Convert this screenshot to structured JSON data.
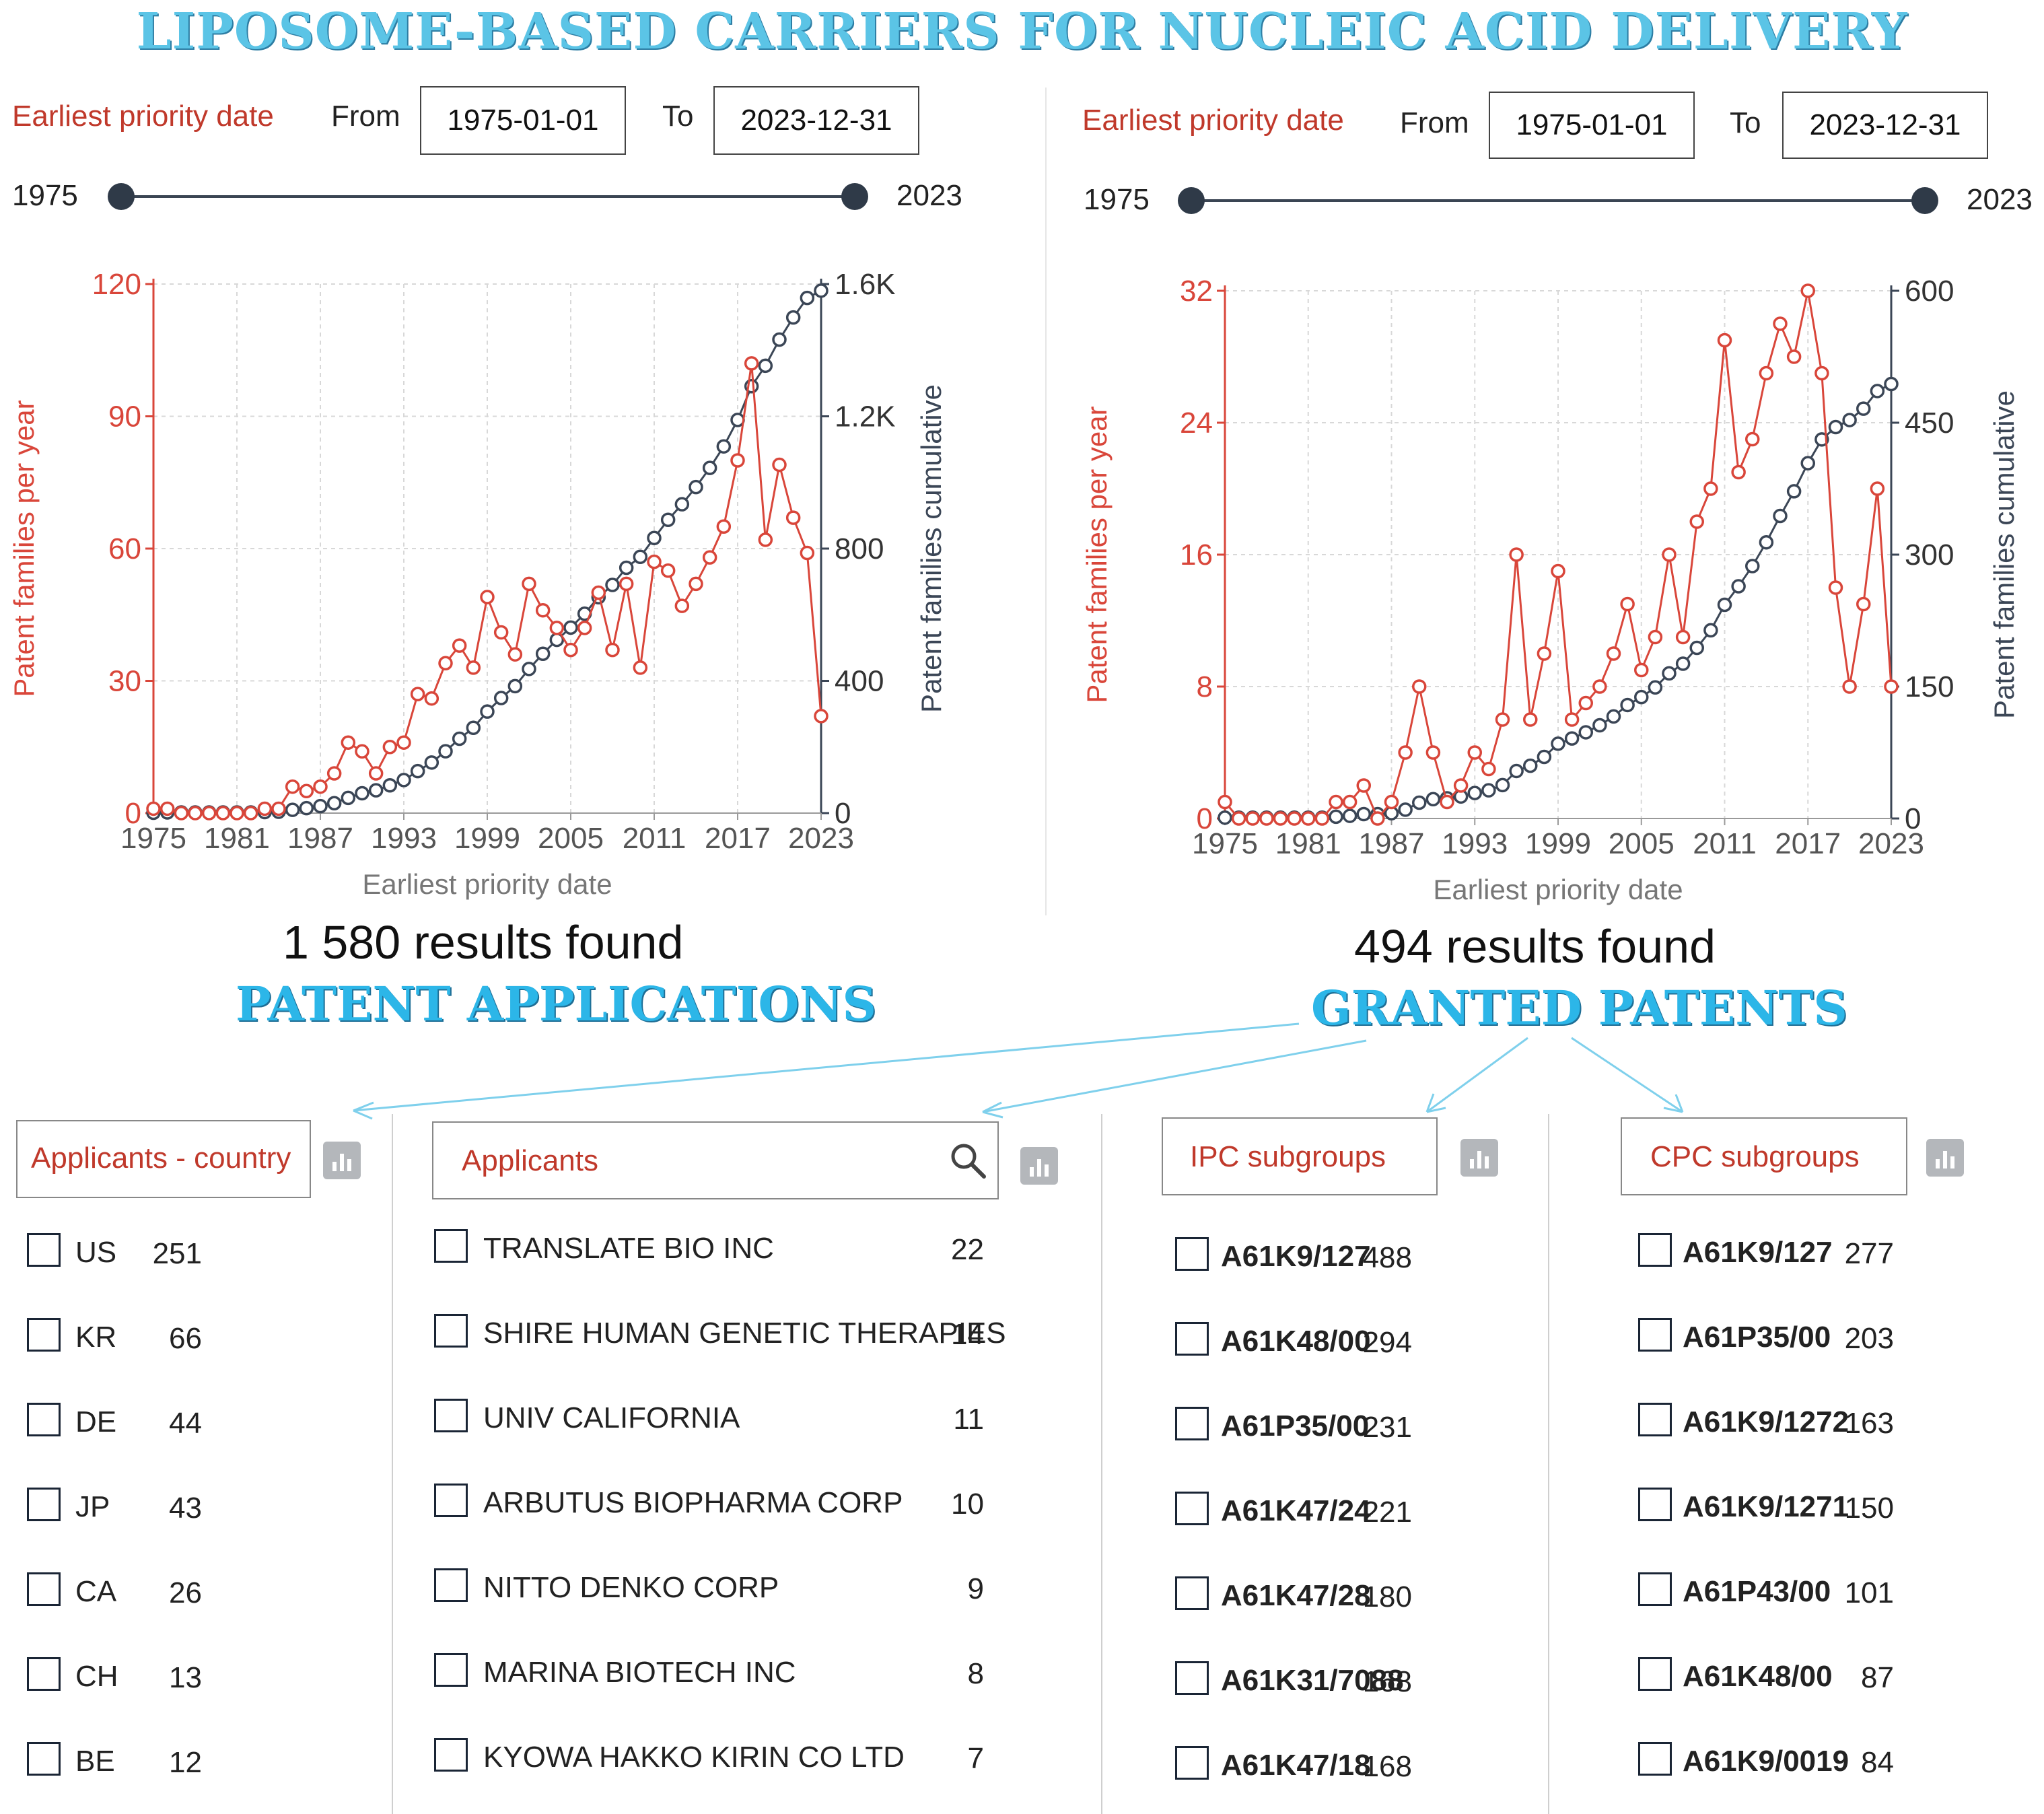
{
  "title": "LIPOSOME-BASED CARRIERS FOR NUCLEIC ACID DELIVERY",
  "panels": [
    {
      "filter_label": "Earliest priority date",
      "from_label": "From",
      "from_value": "1975-01-01",
      "to_label": "To",
      "to_value": "2023-12-31",
      "slider_min": "1975",
      "slider_max": "2023",
      "results": "1 580 results found",
      "section_title": "PATENT APPLICATIONS"
    },
    {
      "filter_label": "Earliest priority date",
      "from_label": "From",
      "from_value": "1975-01-01",
      "to_label": "To",
      "to_value": "2023-12-31",
      "slider_min": "1975",
      "slider_max": "2023",
      "results": "494 results found",
      "section_title": "GRANTED PATENTS"
    }
  ],
  "chart_data": [
    {
      "type": "line",
      "title": "",
      "xlabel": "Earliest priority date",
      "ylabel": "Patent families per year",
      "y2label": "Patent families cumulative",
      "x": [
        1975,
        1976,
        1977,
        1978,
        1979,
        1980,
        1981,
        1982,
        1983,
        1984,
        1985,
        1986,
        1987,
        1988,
        1989,
        1990,
        1991,
        1992,
        1993,
        1994,
        1995,
        1996,
        1997,
        1998,
        1999,
        2000,
        2001,
        2002,
        2003,
        2004,
        2005,
        2006,
        2007,
        2008,
        2009,
        2010,
        2011,
        2012,
        2013,
        2014,
        2015,
        2016,
        2017,
        2018,
        2019,
        2020,
        2021,
        2022,
        2023
      ],
      "xticks": [
        "1975",
        "1981",
        "1987",
        "1993",
        "1999",
        "2005",
        "2011",
        "2017",
        "2023"
      ],
      "ylim": [
        0,
        120
      ],
      "yticks": [
        "0",
        "30",
        "60",
        "90",
        "120"
      ],
      "y2lim": [
        0,
        1600
      ],
      "y2ticks": [
        "0",
        "400",
        "800",
        "1.2K",
        "1.6K"
      ],
      "series": [
        {
          "name": "Patent families per year",
          "axis": "left",
          "color": "#d9463a",
          "values": [
            1,
            1,
            0,
            0,
            0,
            0,
            0,
            0,
            1,
            1,
            6,
            5,
            6,
            9,
            16,
            14,
            9,
            15,
            16,
            27,
            26,
            34,
            38,
            33,
            49,
            41,
            36,
            52,
            46,
            42,
            37,
            42,
            50,
            37,
            52,
            33,
            57,
            55,
            47,
            52,
            58,
            65,
            80,
            102,
            62,
            79,
            67,
            59,
            22
          ]
        },
        {
          "name": "Patent families cumulative",
          "axis": "right",
          "color": "#3b4656",
          "values": [
            1,
            2,
            2,
            2,
            2,
            2,
            2,
            2,
            3,
            4,
            10,
            15,
            21,
            30,
            46,
            60,
            69,
            84,
            100,
            127,
            153,
            187,
            225,
            258,
            307,
            348,
            384,
            436,
            482,
            524,
            561,
            603,
            653,
            690,
            742,
            775,
            832,
            887,
            934,
            986,
            1044,
            1109,
            1189,
            1291,
            1353,
            1432,
            1499,
            1558,
            1580
          ]
        }
      ]
    },
    {
      "type": "line",
      "title": "",
      "xlabel": "Earliest priority date",
      "ylabel": "Patent families per year",
      "y2label": "Patent families cumulative",
      "x": [
        1975,
        1976,
        1977,
        1978,
        1979,
        1980,
        1981,
        1982,
        1983,
        1984,
        1985,
        1986,
        1987,
        1988,
        1989,
        1990,
        1991,
        1992,
        1993,
        1994,
        1995,
        1996,
        1997,
        1998,
        1999,
        2000,
        2001,
        2002,
        2003,
        2004,
        2005,
        2006,
        2007,
        2008,
        2009,
        2010,
        2011,
        2012,
        2013,
        2014,
        2015,
        2016,
        2017,
        2018,
        2019,
        2020,
        2021,
        2022,
        2023
      ],
      "xticks": [
        "1975",
        "1981",
        "1987",
        "1993",
        "1999",
        "2005",
        "2011",
        "2017",
        "2023"
      ],
      "ylim": [
        0,
        32
      ],
      "yticks": [
        "0",
        "8",
        "16",
        "24",
        "32"
      ],
      "y2lim": [
        0,
        600
      ],
      "y2ticks": [
        "0",
        "150",
        "300",
        "450",
        "600"
      ],
      "series": [
        {
          "name": "Patent families per year",
          "axis": "left",
          "color": "#d9463a",
          "values": [
            1,
            0,
            0,
            0,
            0,
            0,
            0,
            0,
            1,
            1,
            2,
            0,
            1,
            4,
            8,
            4,
            1,
            2,
            4,
            3,
            6,
            16,
            6,
            10,
            15,
            6,
            7,
            8,
            10,
            13,
            9,
            11,
            16,
            11,
            18,
            20,
            29,
            21,
            23,
            27,
            30,
            28,
            32,
            27,
            14,
            8,
            13,
            20,
            8
          ]
        },
        {
          "name": "Patent families cumulative",
          "axis": "right",
          "color": "#3b4656",
          "values": [
            1,
            1,
            1,
            1,
            1,
            1,
            1,
            1,
            2,
            3,
            5,
            5,
            6,
            10,
            18,
            22,
            23,
            25,
            29,
            32,
            38,
            54,
            60,
            70,
            85,
            91,
            98,
            106,
            116,
            129,
            138,
            149,
            165,
            176,
            194,
            214,
            243,
            264,
            287,
            314,
            344,
            372,
            404,
            431,
            445,
            453,
            466,
            486,
            494
          ]
        }
      ]
    }
  ],
  "facets": [
    {
      "title": "Applicants - country",
      "items": [
        {
          "label": "US",
          "count": "251"
        },
        {
          "label": "KR",
          "count": "66"
        },
        {
          "label": "DE",
          "count": "44"
        },
        {
          "label": "JP",
          "count": "43"
        },
        {
          "label": "CA",
          "count": "26"
        },
        {
          "label": "CH",
          "count": "13"
        },
        {
          "label": "BE",
          "count": "12"
        }
      ]
    },
    {
      "title": "Applicants",
      "items": [
        {
          "label": "TRANSLATE BIO INC",
          "count": "22"
        },
        {
          "label": "SHIRE HUMAN GENETIC THERAPIES",
          "count": "14"
        },
        {
          "label": "UNIV CALIFORNIA",
          "count": "11"
        },
        {
          "label": "ARBUTUS BIOPHARMA CORP",
          "count": "10"
        },
        {
          "label": "NITTO DENKO CORP",
          "count": "9"
        },
        {
          "label": "MARINA BIOTECH INC",
          "count": "8"
        },
        {
          "label": "KYOWA HAKKO KIRIN CO LTD",
          "count": "7"
        }
      ]
    },
    {
      "title": "IPC subgroups",
      "items": [
        {
          "label": "A61K9/127",
          "count": "488"
        },
        {
          "label": "A61K48/00",
          "count": "294"
        },
        {
          "label": "A61P35/00",
          "count": "231"
        },
        {
          "label": "A61K47/24",
          "count": "221"
        },
        {
          "label": "A61K47/28",
          "count": "180"
        },
        {
          "label": "A61K31/7088",
          "count": "168"
        },
        {
          "label": "A61K47/18",
          "count": "168"
        }
      ]
    },
    {
      "title": "CPC subgroups",
      "items": [
        {
          "label": "A61K9/127",
          "count": "277"
        },
        {
          "label": "A61P35/00",
          "count": "203"
        },
        {
          "label": "A61K9/1272",
          "count": "163"
        },
        {
          "label": "A61K9/1271",
          "count": "150"
        },
        {
          "label": "A61P43/00",
          "count": "101"
        },
        {
          "label": "A61K48/00",
          "count": "87"
        },
        {
          "label": "A61K9/0019",
          "count": "84"
        }
      ]
    }
  ]
}
